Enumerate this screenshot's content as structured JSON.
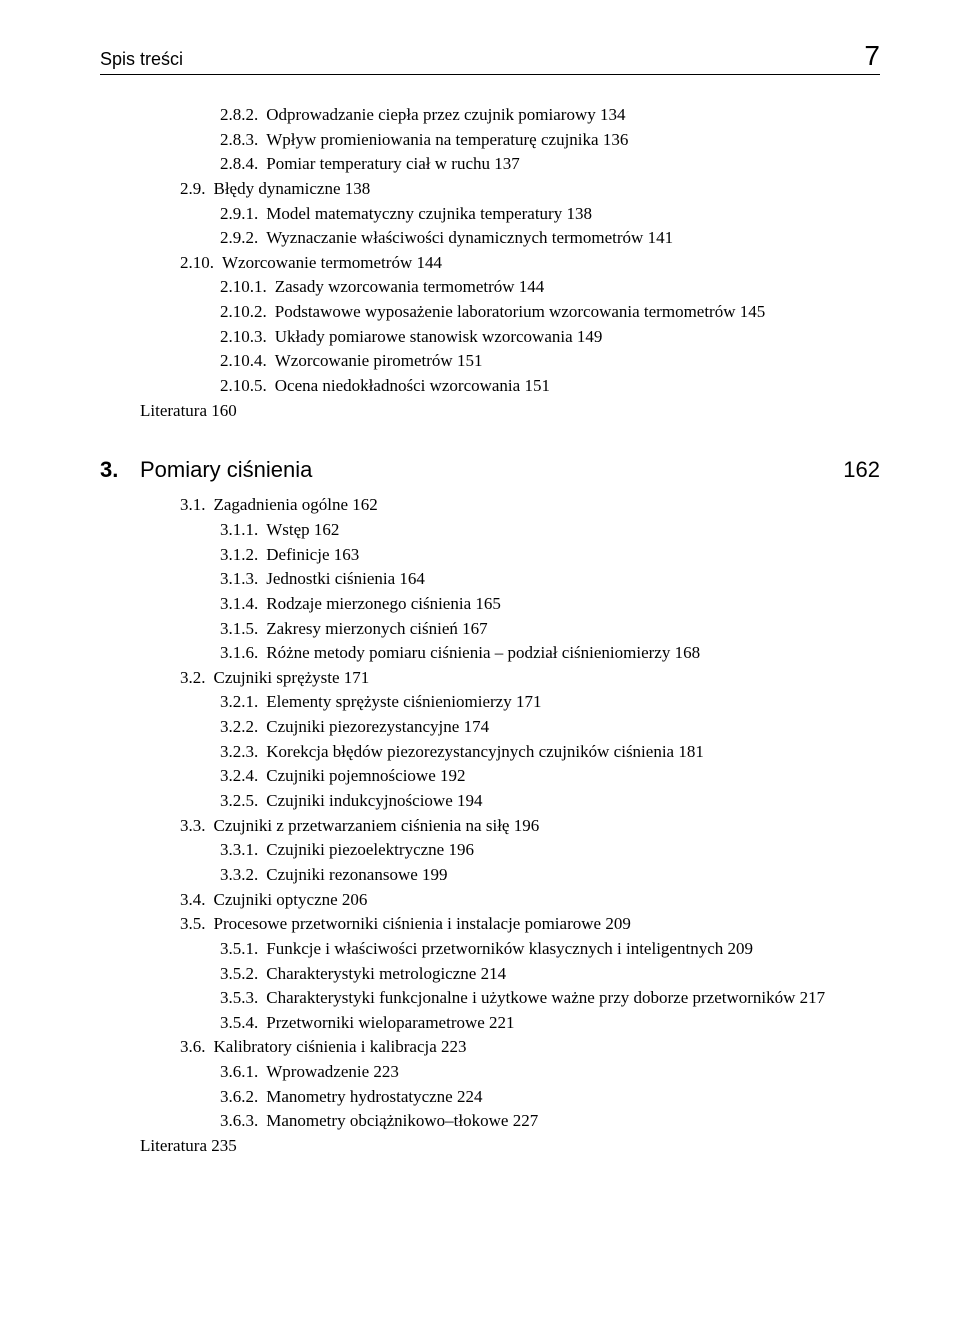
{
  "header": {
    "title": "Spis treści",
    "page": "7"
  },
  "block1": {
    "items": [
      {
        "lvl": 4,
        "num": "2.8.2.",
        "txt": "Odprowadzanie ciepła przez czujnik pomiarowy   134"
      },
      {
        "lvl": 4,
        "num": "2.8.3.",
        "txt": "Wpływ promieniowania na temperaturę czujnika   136"
      },
      {
        "lvl": 4,
        "num": "2.8.4.",
        "txt": "Pomiar temperatury ciał w ruchu   137"
      },
      {
        "lvl": 3,
        "num": "2.9.",
        "txt": "Błędy dynamiczne   138"
      },
      {
        "lvl": 4,
        "num": "2.9.1.",
        "txt": "Model matematyczny czujnika temperatury   138"
      },
      {
        "lvl": 4,
        "num": "2.9.2.",
        "txt": "Wyznaczanie właściwości dynamicznych termometrów   141"
      },
      {
        "lvl": 3,
        "num": "2.10.",
        "txt": "Wzorcowanie termometrów   144"
      },
      {
        "lvl": 4,
        "num": "2.10.1.",
        "txt": "Zasady wzorcowania termometrów   144"
      },
      {
        "lvl": 4,
        "num": "2.10.2.",
        "txt": "Podstawowe wyposażenie laboratorium wzorcowania termometrów   145"
      },
      {
        "lvl": 4,
        "num": "2.10.3.",
        "txt": "Układy pomiarowe stanowisk wzorcowania   149"
      },
      {
        "lvl": 4,
        "num": "2.10.4.",
        "txt": "Wzorcowanie pirometrów   151"
      },
      {
        "lvl": 4,
        "num": "2.10.5.",
        "txt": "Ocena niedokładności wzorcowania   151"
      }
    ],
    "literature": "Literatura   160"
  },
  "chapter3": {
    "num": "3.",
    "title": "Pomiary ciśnienia",
    "page": "162"
  },
  "block2": {
    "items": [
      {
        "lvl": 3,
        "num": "3.1.",
        "txt": "Zagadnienia ogólne   162"
      },
      {
        "lvl": 4,
        "num": "3.1.1.",
        "txt": "Wstęp   162"
      },
      {
        "lvl": 4,
        "num": "3.1.2.",
        "txt": "Definicje   163"
      },
      {
        "lvl": 4,
        "num": "3.1.3.",
        "txt": "Jednostki ciśnienia   164"
      },
      {
        "lvl": 4,
        "num": "3.1.4.",
        "txt": "Rodzaje mierzonego ciśnienia   165"
      },
      {
        "lvl": 4,
        "num": "3.1.5.",
        "txt": "Zakresy mierzonych ciśnień   167"
      },
      {
        "lvl": 4,
        "num": "3.1.6.",
        "txt": "Różne metody pomiaru ciśnienia – podział ciśnieniomierzy   168"
      },
      {
        "lvl": 3,
        "num": "3.2.",
        "txt": "Czujniki sprężyste   171"
      },
      {
        "lvl": 4,
        "num": "3.2.1.",
        "txt": "Elementy sprężyste ciśnieniomierzy   171"
      },
      {
        "lvl": 4,
        "num": "3.2.2.",
        "txt": "Czujniki piezorezystancyjne   174"
      },
      {
        "lvl": 4,
        "num": "3.2.3.",
        "txt": "Korekcja błędów piezorezystancyjnych czujników ciśnienia   181"
      },
      {
        "lvl": 4,
        "num": "3.2.4.",
        "txt": "Czujniki pojemnościowe   192"
      },
      {
        "lvl": 4,
        "num": "3.2.5.",
        "txt": "Czujniki indukcyjnościowe   194"
      },
      {
        "lvl": 3,
        "num": "3.3.",
        "txt": "Czujniki z przetwarzaniem ciśnienia na siłę   196"
      },
      {
        "lvl": 4,
        "num": "3.3.1.",
        "txt": "Czujniki piezoelektryczne   196"
      },
      {
        "lvl": 4,
        "num": "3.3.2.",
        "txt": "Czujniki rezonansowe   199"
      },
      {
        "lvl": 3,
        "num": "3.4.",
        "txt": "Czujniki optyczne   206"
      },
      {
        "lvl": 3,
        "num": "3.5.",
        "txt": "Procesowe przetworniki ciśnienia i instalacje pomiarowe   209"
      },
      {
        "lvl": 4,
        "num": "3.5.1.",
        "txt": "Funkcje i właściwości przetworników klasycznych i inteligentnych   209"
      },
      {
        "lvl": 4,
        "num": "3.5.2.",
        "txt": "Charakterystyki metrologiczne   214"
      },
      {
        "lvl": 4,
        "num": "3.5.3.",
        "txt": "Charakterystyki funkcjonalne i użytkowe ważne przy doborze przetworników   217"
      },
      {
        "lvl": 4,
        "num": "3.5.4.",
        "txt": "Przetworniki wieloparametrowe   221"
      },
      {
        "lvl": 3,
        "num": "3.6.",
        "txt": "Kalibratory ciśnienia i kalibracja   223"
      },
      {
        "lvl": 4,
        "num": "3.6.1.",
        "txt": "Wprowadzenie   223"
      },
      {
        "lvl": 4,
        "num": "3.6.2.",
        "txt": "Manometry hydrostatyczne   224"
      },
      {
        "lvl": 4,
        "num": "3.6.3.",
        "txt": "Manometry obciążnikowo–tłokowe   227"
      }
    ],
    "literature": "Literatura   235"
  }
}
